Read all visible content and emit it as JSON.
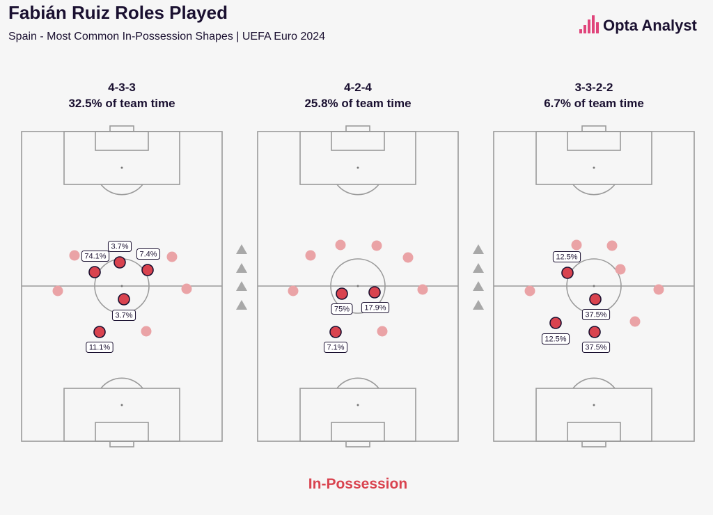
{
  "header": {
    "title": "Fabián Ruiz Roles Played",
    "subtitle": "Spain - Most Common In-Possession Shapes | UEFA Euro 2024",
    "brand": "Opta Analyst"
  },
  "pitches": [
    {
      "formation": "4-3-3",
      "share": "32.5% of team time",
      "roles": [
        "74.1%",
        "3.7%",
        "7.4%",
        "3.7%",
        "11.1%"
      ]
    },
    {
      "formation": "4-2-4",
      "share": "25.8% of team time",
      "roles": [
        "75%",
        "17.9%",
        "7.1%"
      ]
    },
    {
      "formation": "3-3-2-2",
      "share": "6.7% of team time",
      "roles": [
        "12.5%",
        "37.5%",
        "12.5%",
        "37.5%"
      ]
    }
  ],
  "footer": "In-Possession"
}
